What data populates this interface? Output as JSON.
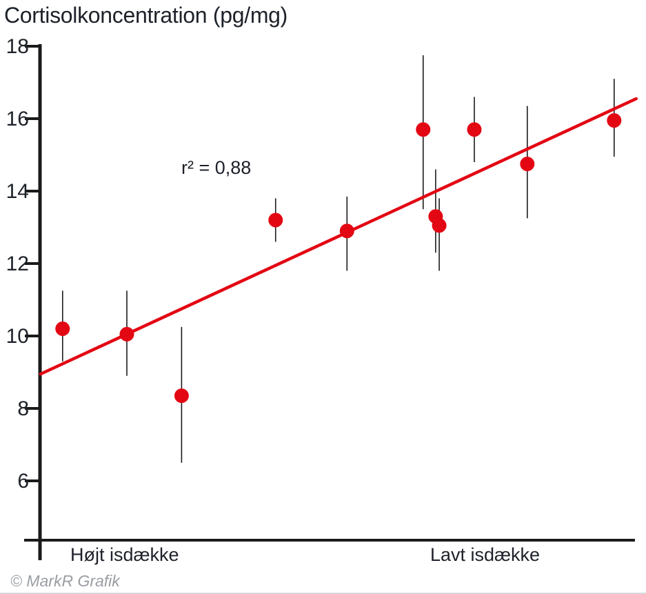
{
  "page": {
    "title": "Cortisolkoncentration (pg/mg)",
    "annotation": "r² = 0,88",
    "x_label_left": "Højt isdække",
    "x_label_right": "Lavt isdække",
    "credit": "© MarkR Grafik"
  },
  "colors": {
    "accent_red": "#e30613",
    "axis_black": "#1a1a1a",
    "text_dark": "#1d2129",
    "credit_gray": "#9a9ea3"
  },
  "chart_data": {
    "type": "scatter",
    "title": "Cortisolkoncentration (pg/mg)",
    "ylabel": "Cortisolkoncentration (pg/mg)",
    "annotation": "r² = 0,88",
    "r_squared": 0.88,
    "decimal_separator": ",",
    "y_ticks": [
      18,
      16,
      14,
      12,
      10,
      8,
      6
    ],
    "ylim": [
      4.4,
      18
    ],
    "x_axis_description": "relative position 0–1 along axis, from 'Højt isdække' (left) to 'Lavt isdække' (right); no numeric x ticks shown",
    "x_category_labels": [
      "Højt isdække",
      "Lavt isdække"
    ],
    "grid": false,
    "legend": false,
    "points": [
      {
        "x": 0.038,
        "y": 10.2,
        "y_min": 9.3,
        "y_max": 11.25
      },
      {
        "x": 0.146,
        "y": 10.05,
        "y_min": 8.9,
        "y_max": 11.25
      },
      {
        "x": 0.238,
        "y": 8.35,
        "y_min": 6.5,
        "y_max": 10.25
      },
      {
        "x": 0.396,
        "y": 13.2,
        "y_min": 12.6,
        "y_max": 13.8
      },
      {
        "x": 0.516,
        "y": 12.9,
        "y_min": 11.8,
        "y_max": 13.85
      },
      {
        "x": 0.644,
        "y": 15.7,
        "y_min": 13.5,
        "y_max": 17.75
      },
      {
        "x": 0.665,
        "y": 13.3,
        "y_min": 12.3,
        "y_max": 14.6
      },
      {
        "x": 0.671,
        "y": 13.05,
        "y_min": 11.8,
        "y_max": 13.8
      },
      {
        "x": 0.73,
        "y": 15.7,
        "y_min": 14.8,
        "y_max": 16.6
      },
      {
        "x": 0.819,
        "y": 14.75,
        "y_min": 13.25,
        "y_max": 16.35
      },
      {
        "x": 0.965,
        "y": 15.95,
        "y_min": 14.95,
        "y_max": 17.1
      }
    ],
    "trend_line": {
      "x1": 0.001,
      "y1": 8.95,
      "x2": 1.002,
      "y2": 16.55
    }
  }
}
